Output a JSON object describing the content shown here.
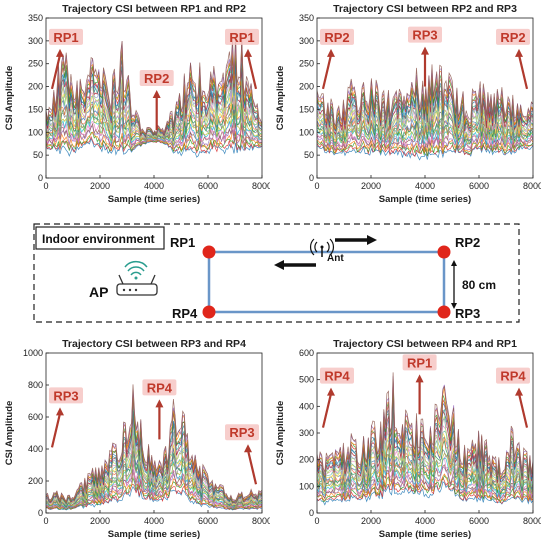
{
  "chart_data": [
    {
      "type": "line",
      "title": "Trajectory CSI between RP1 and RP2",
      "xlabel": "Sample (time series)",
      "ylabel": "CSI Amplitude",
      "xlim": [
        0,
        8000
      ],
      "ylim": [
        0,
        350
      ],
      "xticks": [
        "0",
        "2000",
        "4000",
        "6000",
        "8000"
      ],
      "yticks": [
        "0",
        "50",
        "100",
        "150",
        "200",
        "250",
        "300",
        "350"
      ],
      "envelope": {
        "x": [
          0,
          400,
          800,
          1200,
          1600,
          2000,
          2400,
          2800,
          3200,
          3600,
          4000,
          4400,
          4800,
          5200,
          5600,
          6000,
          6400,
          6800,
          7200,
          7600,
          8000
        ],
        "high": [
          150,
          240,
          300,
          210,
          260,
          280,
          200,
          330,
          170,
          110,
          115,
          115,
          170,
          250,
          270,
          230,
          280,
          300,
          330,
          210,
          160
        ],
        "low": [
          55,
          40,
          30,
          45,
          50,
          40,
          35,
          30,
          45,
          70,
          75,
          70,
          40,
          35,
          30,
          35,
          40,
          30,
          35,
          45,
          60
        ]
      },
      "annotations": [
        {
          "text": "RP1",
          "x": 400,
          "y": 300
        },
        {
          "text": "RP2",
          "x": 4100,
          "y": 210
        },
        {
          "text": "RP1",
          "x": 7500,
          "y": 300
        }
      ]
    },
    {
      "type": "line",
      "title": "Trajectory CSI between RP2 and RP3",
      "xlabel": "Sample (time series)",
      "ylabel": "CSI Amplitude",
      "xlim": [
        0,
        8000
      ],
      "ylim": [
        0,
        350
      ],
      "xticks": [
        "0",
        "2000",
        "4000",
        "6000",
        "8000"
      ],
      "yticks": [
        "0",
        "50",
        "100",
        "150",
        "200",
        "250",
        "300",
        "350"
      ],
      "envelope": {
        "x": [
          0,
          400,
          800,
          1200,
          1600,
          2000,
          2400,
          2800,
          3200,
          3600,
          4000,
          4400,
          4800,
          5200,
          5600,
          6000,
          6400,
          6800,
          7200,
          7600,
          8000
        ],
        "high": [
          190,
          180,
          160,
          220,
          200,
          230,
          190,
          200,
          250,
          245,
          240,
          245,
          250,
          200,
          180,
          210,
          190,
          200,
          180,
          190,
          185
        ],
        "low": [
          50,
          40,
          40,
          35,
          40,
          35,
          40,
          35,
          30,
          25,
          25,
          25,
          30,
          40,
          35,
          45,
          40,
          35,
          40,
          55,
          50
        ]
      },
      "annotations": [
        {
          "text": "RP2",
          "x": 400,
          "y": 300
        },
        {
          "text": "RP3",
          "x": 4000,
          "y": 305
        },
        {
          "text": "RP2",
          "x": 7400,
          "y": 300
        }
      ]
    },
    {
      "type": "line",
      "title": "Trajectory CSI between RP3 and RP4",
      "xlabel": "Sample (time series)",
      "ylabel": "CSI Amplitude",
      "xlim": [
        0,
        8000
      ],
      "ylim": [
        0,
        1000
      ],
      "xticks": [
        "0",
        "2000",
        "4000",
        "6000",
        "8000"
      ],
      "yticks": [
        "0",
        "200",
        "400",
        "600",
        "800",
        "1000"
      ],
      "envelope": {
        "x": [
          0,
          400,
          800,
          1200,
          1600,
          2000,
          2400,
          2800,
          3200,
          3600,
          4000,
          4400,
          4800,
          5200,
          5600,
          6000,
          6400,
          6800,
          7200,
          7600,
          8000
        ],
        "high": [
          120,
          140,
          110,
          170,
          260,
          310,
          420,
          560,
          830,
          520,
          380,
          400,
          780,
          600,
          340,
          260,
          200,
          120,
          130,
          150,
          140
        ],
        "low": [
          15,
          10,
          10,
          20,
          15,
          20,
          25,
          40,
          60,
          50,
          40,
          45,
          60,
          40,
          20,
          15,
          10,
          10,
          15,
          10,
          15
        ]
      },
      "annotations": [
        {
          "text": "RP3",
          "x": 500,
          "y": 710
        },
        {
          "text": "RP4",
          "x": 4200,
          "y": 760
        },
        {
          "text": "RP3",
          "x": 7300,
          "y": 480
        }
      ]
    },
    {
      "type": "line",
      "title": "Trajectory CSI between RP4 and RP1",
      "xlabel": "Sample (time series)",
      "ylabel": "CSI Amplitude",
      "xlim": [
        0,
        8000
      ],
      "ylim": [
        0,
        600
      ],
      "xticks": [
        "0",
        "2000",
        "4000",
        "6000",
        "8000"
      ],
      "yticks": [
        "0",
        "100",
        "200",
        "300",
        "400",
        "500",
        "600"
      ],
      "envelope": {
        "x": [
          0,
          400,
          800,
          1200,
          1600,
          2000,
          2400,
          2800,
          3200,
          3600,
          4000,
          4400,
          4800,
          5200,
          5600,
          6000,
          6400,
          6800,
          7200,
          7600,
          8000
        ],
        "high": [
          230,
          220,
          250,
          300,
          270,
          340,
          370,
          540,
          390,
          370,
          380,
          400,
          560,
          330,
          250,
          320,
          260,
          220,
          330,
          240,
          230
        ],
        "low": [
          20,
          15,
          20,
          20,
          25,
          25,
          30,
          40,
          40,
          35,
          35,
          35,
          40,
          30,
          25,
          20,
          20,
          15,
          20,
          20,
          25
        ]
      },
      "annotations": [
        {
          "text": "RP4",
          "x": 400,
          "y": 500
        },
        {
          "text": "RP1",
          "x": 3800,
          "y": 550
        },
        {
          "text": "RP4",
          "x": 7300,
          "y": 500
        }
      ]
    }
  ],
  "diagram": {
    "legend": "Indoor environment",
    "ap_label": "AP",
    "ant_label": "Ant",
    "distance_label": "80 cm",
    "points": {
      "rp1": "RP1",
      "rp2": "RP2",
      "rp3": "RP3",
      "rp4": "RP4"
    }
  },
  "colors": {
    "rp_text": "#c0392b",
    "arrow": "#b03a2e",
    "rp_dot": "#e0261b",
    "path": "#6a96c8"
  }
}
